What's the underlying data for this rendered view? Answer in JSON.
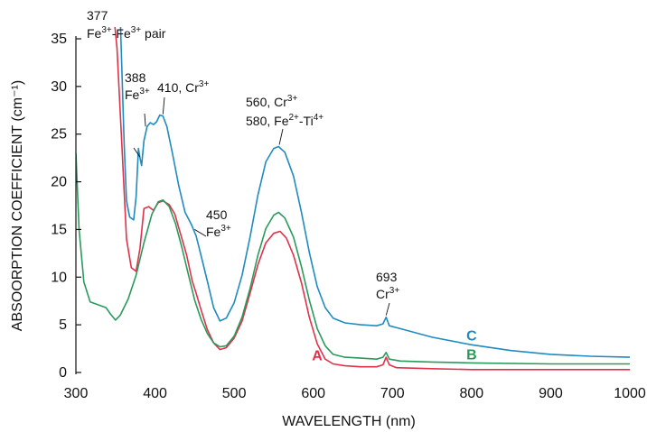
{
  "chart_data": {
    "type": "line",
    "xlabel": "WAVELENGTH (nm)",
    "ylabel": "ABSOORPTION COEFFICIENT (cm⁻¹)",
    "xlim": [
      300,
      1000
    ],
    "ylim": [
      0,
      35
    ],
    "x_ticks": [
      300,
      400,
      500,
      600,
      700,
      800,
      900,
      1000
    ],
    "y_ticks": [
      0,
      5,
      10,
      15,
      20,
      25,
      30,
      35
    ],
    "grid": false,
    "series": [
      {
        "name": "A",
        "color": "#e0314a",
        "points": [
          [
            345,
            40
          ],
          [
            352,
            34
          ],
          [
            358,
            24
          ],
          [
            364,
            14
          ],
          [
            370,
            11
          ],
          [
            376,
            10.6
          ],
          [
            381,
            13
          ],
          [
            386,
            17.2
          ],
          [
            392,
            17.4
          ],
          [
            398,
            17
          ],
          [
            404,
            17.8
          ],
          [
            410,
            18
          ],
          [
            418,
            17.6
          ],
          [
            425,
            16.6
          ],
          [
            432,
            14.6
          ],
          [
            440,
            12.3
          ],
          [
            447,
            9.6
          ],
          [
            452,
            8.3
          ],
          [
            458,
            6.6
          ],
          [
            466,
            4.5
          ],
          [
            474,
            3.1
          ],
          [
            482,
            2.4
          ],
          [
            490,
            2.6
          ],
          [
            500,
            3.6
          ],
          [
            510,
            5.4
          ],
          [
            520,
            8.3
          ],
          [
            530,
            11.3
          ],
          [
            540,
            13.6
          ],
          [
            550,
            14.6
          ],
          [
            558,
            14.8
          ],
          [
            566,
            14.1
          ],
          [
            575,
            12.3
          ],
          [
            585,
            9.4
          ],
          [
            595,
            5.8
          ],
          [
            605,
            3.0
          ],
          [
            615,
            1.4
          ],
          [
            625,
            0.9
          ],
          [
            640,
            0.7
          ],
          [
            660,
            0.6
          ],
          [
            680,
            0.6
          ],
          [
            688,
            0.8
          ],
          [
            692,
            1.6
          ],
          [
            696,
            0.8
          ],
          [
            705,
            0.5
          ],
          [
            750,
            0.4
          ],
          [
            800,
            0.3
          ],
          [
            900,
            0.3
          ],
          [
            1000,
            0.3
          ]
        ]
      },
      {
        "name": "B",
        "color": "#2a9a5c",
        "points": [
          [
            300,
            23
          ],
          [
            304,
            15
          ],
          [
            310,
            9.5
          ],
          [
            318,
            7.4
          ],
          [
            328,
            7.1
          ],
          [
            338,
            6.8
          ],
          [
            344,
            6.1
          ],
          [
            350,
            5.5
          ],
          [
            356,
            6.0
          ],
          [
            366,
            7.7
          ],
          [
            376,
            10.2
          ],
          [
            386,
            13.6
          ],
          [
            396,
            16.6
          ],
          [
            404,
            17.9
          ],
          [
            410,
            18.1
          ],
          [
            418,
            17.4
          ],
          [
            426,
            15.6
          ],
          [
            434,
            13.1
          ],
          [
            442,
            10.3
          ],
          [
            450,
            7.6
          ],
          [
            458,
            5.6
          ],
          [
            466,
            4.1
          ],
          [
            474,
            3.1
          ],
          [
            482,
            2.7
          ],
          [
            490,
            2.8
          ],
          [
            500,
            3.8
          ],
          [
            510,
            5.8
          ],
          [
            520,
            8.8
          ],
          [
            530,
            12.3
          ],
          [
            540,
            15.1
          ],
          [
            550,
            16.5
          ],
          [
            556,
            16.8
          ],
          [
            564,
            16.2
          ],
          [
            575,
            14.2
          ],
          [
            585,
            11.1
          ],
          [
            595,
            7.6
          ],
          [
            605,
            4.6
          ],
          [
            615,
            2.8
          ],
          [
            625,
            1.9
          ],
          [
            640,
            1.6
          ],
          [
            660,
            1.5
          ],
          [
            680,
            1.4
          ],
          [
            688,
            1.6
          ],
          [
            692,
            2.1
          ],
          [
            696,
            1.4
          ],
          [
            710,
            1.2
          ],
          [
            750,
            1.1
          ],
          [
            800,
            1.0
          ],
          [
            900,
            0.9
          ],
          [
            1000,
            0.9
          ]
        ]
      },
      {
        "name": "C",
        "color": "#1f8bbf",
        "points": [
          [
            355,
            40
          ],
          [
            358,
            32
          ],
          [
            361,
            24
          ],
          [
            364,
            18
          ],
          [
            368,
            16.3
          ],
          [
            373,
            16
          ],
          [
            376,
            18.4
          ],
          [
            379,
            23.5
          ],
          [
            381,
            22.5
          ],
          [
            383,
            21.7
          ],
          [
            386,
            24.3
          ],
          [
            390,
            25.8
          ],
          [
            394,
            26.2
          ],
          [
            398,
            26.0
          ],
          [
            402,
            26.3
          ],
          [
            406,
            27.0
          ],
          [
            410,
            26.9
          ],
          [
            415,
            25.8
          ],
          [
            422,
            23
          ],
          [
            430,
            19.6
          ],
          [
            438,
            16.8
          ],
          [
            446,
            15.5
          ],
          [
            452,
            14.3
          ],
          [
            458,
            12.3
          ],
          [
            466,
            9.6
          ],
          [
            474,
            6.8
          ],
          [
            482,
            5.4
          ],
          [
            490,
            5.7
          ],
          [
            500,
            7.3
          ],
          [
            510,
            10.2
          ],
          [
            520,
            14.2
          ],
          [
            530,
            18.6
          ],
          [
            540,
            22.1
          ],
          [
            550,
            23.5
          ],
          [
            556,
            23.7
          ],
          [
            564,
            23.1
          ],
          [
            575,
            20.6
          ],
          [
            585,
            16.8
          ],
          [
            595,
            12.6
          ],
          [
            605,
            9.0
          ],
          [
            615,
            6.8
          ],
          [
            625,
            5.7
          ],
          [
            640,
            5.2
          ],
          [
            660,
            5.0
          ],
          [
            680,
            4.9
          ],
          [
            688,
            5.1
          ],
          [
            692,
            5.8
          ],
          [
            696,
            4.9
          ],
          [
            710,
            4.6
          ],
          [
            750,
            3.7
          ],
          [
            800,
            2.9
          ],
          [
            850,
            2.3
          ],
          [
            900,
            1.9
          ],
          [
            950,
            1.7
          ],
          [
            1000,
            1.6
          ]
        ]
      }
    ],
    "annotations": [
      {
        "id": "a377",
        "lines": [
          {
            "t": "377"
          },
          {
            "t": "Fe",
            "sup": "3+",
            "t2": "-Fe",
            "sup2": "3+",
            "t3": " pair"
          }
        ],
        "x": 381,
        "y": 22.6
      },
      {
        "id": "a388",
        "lines": [
          {
            "t": "388"
          },
          {
            "t": "Fe",
            "sup": "3+"
          }
        ],
        "x": 388,
        "y": 25.8
      },
      {
        "id": "a410",
        "lines": [
          {
            "t": "410, Cr",
            "sup": "3+"
          }
        ],
        "x": 410,
        "y": 26.9
      },
      {
        "id": "a450",
        "lines": [
          {
            "t": "450"
          },
          {
            "t": "Fe",
            "sup": "3+"
          }
        ],
        "x": 450,
        "y": 15.0
      },
      {
        "id": "a560",
        "lines": [
          {
            "t": "560, Cr",
            "sup": "3+"
          },
          {
            "t": "580, Fe",
            "sup": "2+",
            "t2": "-Ti",
            "sup2": "4+"
          }
        ],
        "x": 557,
        "y": 23.7
      },
      {
        "id": "a693",
        "lines": [
          {
            "t": "693"
          },
          {
            "t": "Cr",
            "sup": "3+"
          }
        ],
        "x": 692,
        "y": 5.8
      }
    ]
  }
}
